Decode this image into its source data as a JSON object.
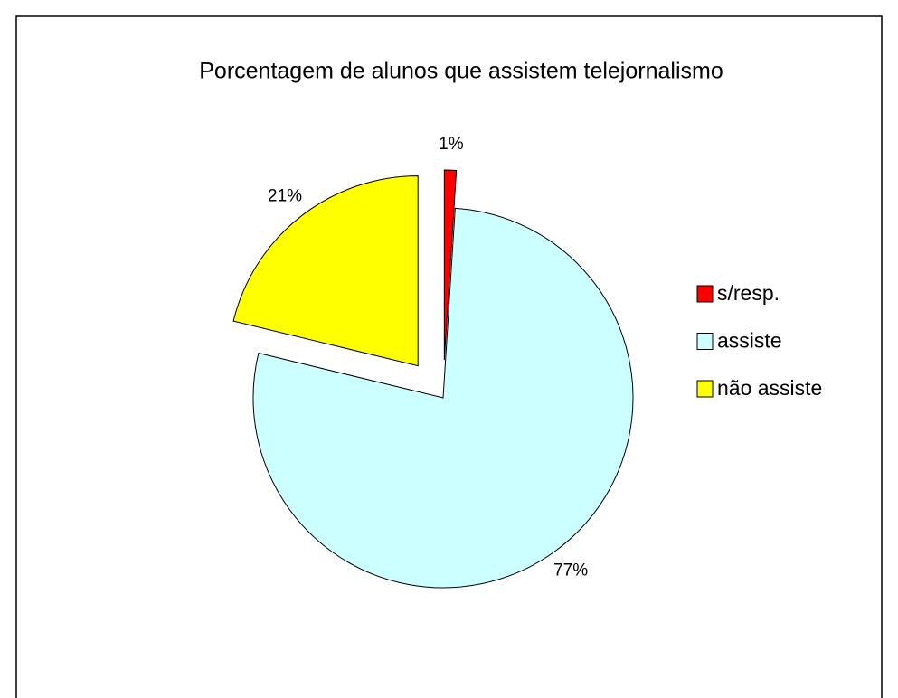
{
  "chart_data": {
    "type": "pie",
    "title": "Porcentagem de alunos que assistem  telejornalismo",
    "categories": [
      "s/resp.",
      "assiste",
      "não assiste"
    ],
    "values": [
      1,
      77,
      21
    ],
    "value_labels": [
      "1%",
      "77%",
      "21%"
    ],
    "colors": [
      "#ff0000",
      "#ccffff",
      "#ffff00"
    ],
    "legend": "right"
  }
}
